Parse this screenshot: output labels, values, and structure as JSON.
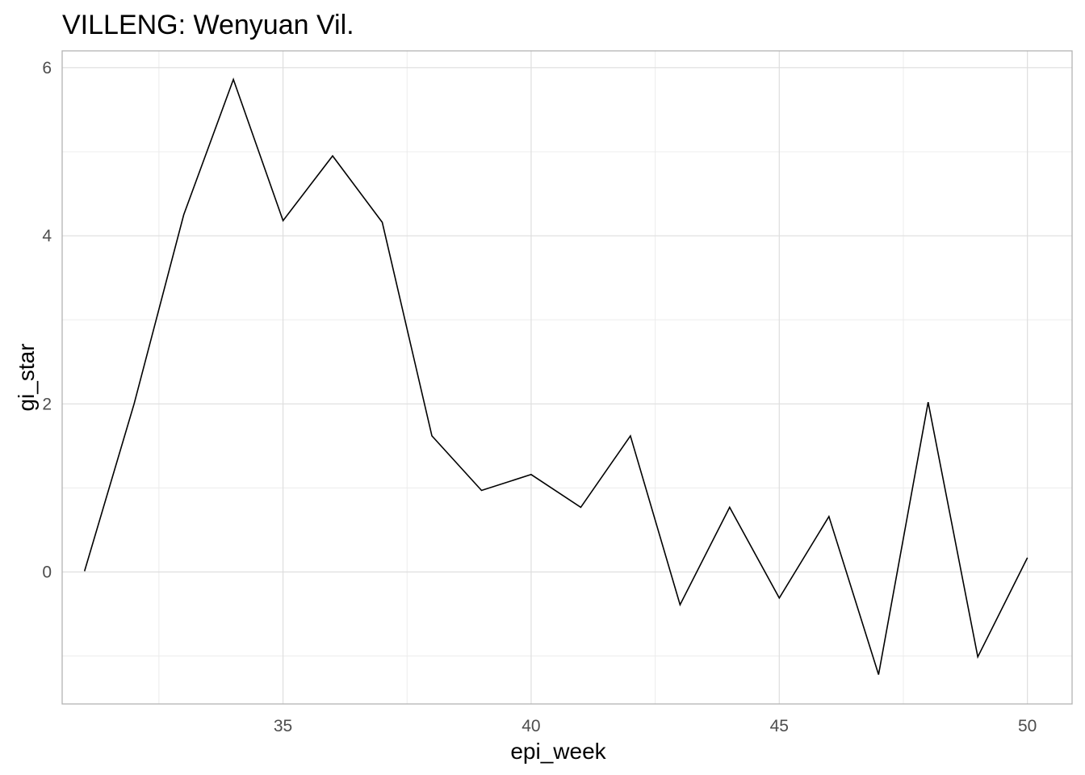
{
  "chart_data": {
    "type": "line",
    "title": "VILLENG: Wenyuan Vil.",
    "xlabel": "epi_week",
    "ylabel": "gi_star",
    "xlim": [
      30.55,
      50.9
    ],
    "ylim": [
      -1.57,
      6.2
    ],
    "x_ticks": [
      35,
      40,
      45,
      50
    ],
    "x_tick_labels": [
      "35",
      "40",
      "45",
      "50"
    ],
    "y_ticks": [
      0,
      2,
      4,
      6
    ],
    "y_tick_labels": [
      "0",
      "2",
      "4",
      "6"
    ],
    "grid": true,
    "legend": "none",
    "line_color": "#000000",
    "series": [
      {
        "x": [
          31,
          32,
          33,
          34,
          35,
          36,
          37,
          38,
          39,
          40,
          41,
          42,
          43,
          44,
          45,
          46,
          47,
          48,
          49,
          50
        ],
        "values": [
          0.01,
          2.0,
          4.25,
          5.86,
          4.18,
          4.95,
          4.16,
          1.62,
          0.97,
          1.16,
          0.77,
          1.62,
          -0.39,
          0.77,
          -0.31,
          0.66,
          -1.22,
          2.02,
          -1.01,
          0.17
        ]
      }
    ]
  }
}
